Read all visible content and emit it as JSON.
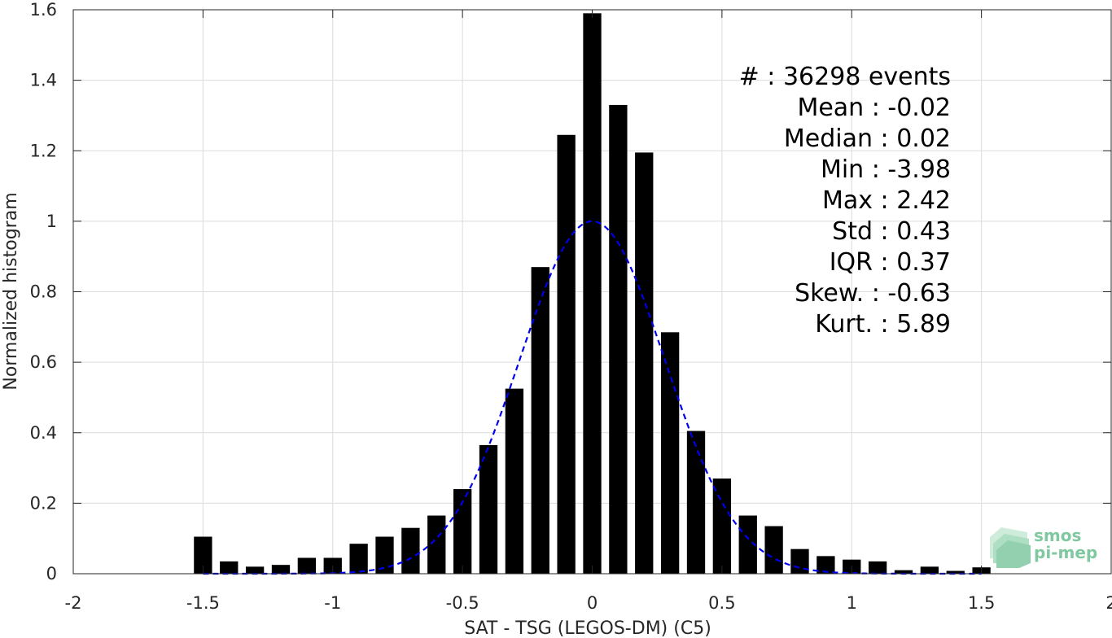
{
  "chart_data": {
    "type": "bar",
    "title": "",
    "xlabel": "SAT - TSG (LEGOS-DM) (C5)",
    "ylabel": "Normalized histogram",
    "xlim": [
      -2,
      2
    ],
    "ylim": [
      0,
      1.6
    ],
    "grid": true,
    "x_ticks": [
      -2,
      -1.5,
      -1,
      -0.5,
      0,
      0.5,
      1,
      1.5,
      2
    ],
    "x_tick_labels": [
      "-2",
      "-1.5",
      "-1",
      "-0.5",
      "0",
      "0.5",
      "1",
      "1.5",
      "2"
    ],
    "y_ticks": [
      0,
      0.2,
      0.4,
      0.6,
      0.8,
      1,
      1.2,
      1.4,
      1.6
    ],
    "y_tick_labels": [
      "0",
      "0.2",
      "0.4",
      "0.6",
      "0.8",
      "1",
      "1.2",
      "1.4",
      "1.6"
    ],
    "bar_width": 0.07,
    "bar_color": "#000000",
    "bins": {
      "x": [
        -1.5,
        -1.4,
        -1.3,
        -1.2,
        -1.1,
        -1.0,
        -0.9,
        -0.8,
        -0.7,
        -0.6,
        -0.5,
        -0.4,
        -0.3,
        -0.2,
        -0.1,
        0.0,
        0.1,
        0.2,
        0.3,
        0.4,
        0.5,
        0.6,
        0.7,
        0.8,
        0.9,
        1.0,
        1.1,
        1.2,
        1.3,
        1.4,
        1.5
      ],
      "values": [
        0.105,
        0.035,
        0.02,
        0.025,
        0.045,
        0.045,
        0.085,
        0.105,
        0.13,
        0.165,
        0.24,
        0.365,
        0.525,
        0.87,
        1.245,
        1.59,
        1.33,
        1.195,
        0.685,
        0.405,
        0.27,
        0.165,
        0.135,
        0.07,
        0.05,
        0.04,
        0.035,
        0.01,
        0.02,
        0.008,
        0.018
      ]
    },
    "gaussian_fit": {
      "style": "dashed",
      "color": "#0000ee",
      "mean": 0.0,
      "std": 0.28,
      "peak": 1.0,
      "x_range": [
        -1.5,
        1.5
      ]
    },
    "stats": [
      "#   : 36298 events",
      "Mean : -0.02",
      "Median : 0.02",
      "Min : -3.98",
      "Max : 2.42",
      "Std : 0.43",
      "IQR : 0.37",
      "Skew. : -0.63",
      "Kurt. : 5.89"
    ]
  },
  "logo": {
    "line1": "smos",
    "line2": "pi-mep",
    "color": "#7fc8a0"
  }
}
